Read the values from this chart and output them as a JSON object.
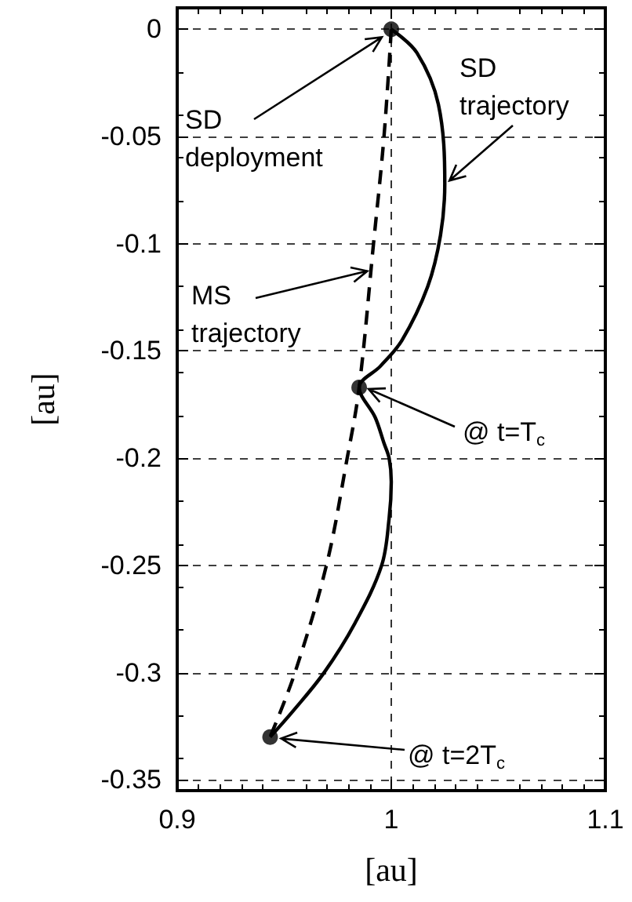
{
  "chart_data": {
    "type": "line",
    "xlabel": "[au]",
    "ylabel": "[au]",
    "xlim": [
      0.9,
      1.1
    ],
    "xticks": [
      0.9,
      1,
      1.1
    ],
    "ylim": [
      -0.355,
      0.01
    ],
    "yticks": [
      0,
      -0.05,
      -0.1,
      -0.15,
      -0.2,
      -0.25,
      -0.3,
      -0.35
    ],
    "grid": true,
    "marker": "none",
    "series": [
      {
        "line_style": "solid",
        "color": "#000000",
        "x": [
          1,
          1.012,
          1.022,
          1.025,
          1.023,
          1.017,
          1.005,
          0.995,
          0.985,
          0.9925,
          0.9966,
          0.999,
          1.0,
          0.999,
          0.9955,
          0.983,
          0.9686,
          0.954,
          0.9434
        ],
        "values": [
          0,
          -0.011,
          -0.035,
          -0.072,
          -0.096,
          -0.12,
          -0.145,
          -0.157,
          -0.167,
          -0.181,
          -0.193,
          -0.2,
          -0.211,
          -0.228,
          -0.25,
          -0.277,
          -0.3,
          -0.318,
          -0.33
        ]
      },
      {
        "line_style": "dashed",
        "color": "#000000",
        "x": [
          1,
          0.9966,
          0.9917,
          0.985,
          0.9794,
          0.9697,
          0.955,
          0.9434
        ],
        "values": [
          0,
          -0.05,
          -0.1,
          -0.167,
          -0.2,
          -0.25,
          -0.3,
          -0.33
        ]
      },
      {
        "type": "scatter",
        "marker": "circle",
        "color": "#000000",
        "x": [
          1,
          0.985,
          0.9434
        ],
        "values": [
          0,
          -0.167,
          -0.33
        ]
      }
    ],
    "annotations": [
      {
        "text": "SD\ndeployment",
        "x": 1,
        "y": 0
      },
      {
        "text": "SD\ntrajectory",
        "x": 1.025,
        "y": -0.072
      },
      {
        "text": "MS\ntrajectory",
        "x": 0.991,
        "y": -0.112
      },
      {
        "text": "@ t=T$_{c}$",
        "x": 0.985,
        "y": -0.167
      },
      {
        "text": "@ t=2T$_{c}$",
        "x": 0.9434,
        "y": -0.33
      }
    ]
  }
}
